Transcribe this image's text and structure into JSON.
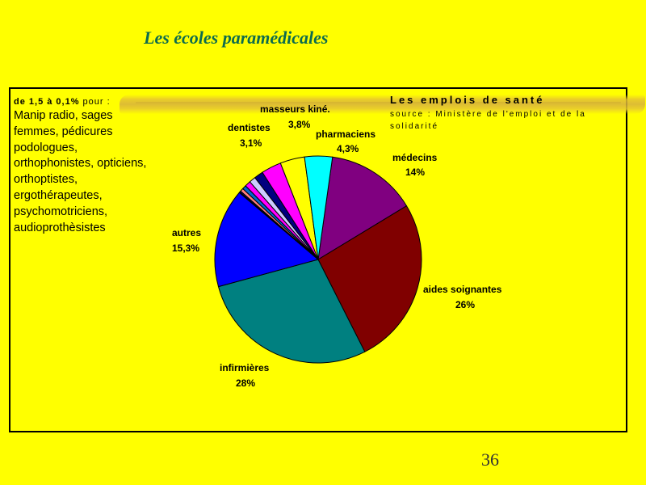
{
  "slide": {
    "title": "Les écoles paramédicales",
    "page_number": "36"
  },
  "left_note": {
    "range_label": "de 1,5 à 0,1%",
    "range_suffix": " pour :",
    "professions_text": "Manip radio, sages femmes, pédicures podologues, orthophonistes, opticiens, orthoptistes, ergothérapeutes, psychomotriciens, audioprothèsistes"
  },
  "source_box": {
    "title": "Les emplois de santé",
    "source_line": "source : Ministère de l'emploi et de la solidarité"
  },
  "chart_data": {
    "type": "pie",
    "title": "Les emplois de santé",
    "start_angle_deg": 8,
    "slices": [
      {
        "label": "médecins",
        "value_label": "14%",
        "value": 14,
        "color": "#800080"
      },
      {
        "label": "aides soignantes",
        "value_label": "26%",
        "value": 26,
        "color": "#800000"
      },
      {
        "label": "infirmières",
        "value_label": "28%",
        "value": 28,
        "color": "#008080"
      },
      {
        "label": "autres",
        "value_label": "15,3%",
        "value": 15.3,
        "color": "#0000FF"
      },
      {
        "label": "",
        "value_label": "",
        "value": 0.1,
        "color": "#FFFFFF"
      },
      {
        "label": "",
        "value_label": "",
        "value": 0.2,
        "color": "#000080"
      },
      {
        "label": "",
        "value_label": "",
        "value": 0.5,
        "color": "#FF8080"
      },
      {
        "label": "",
        "value_label": "",
        "value": 0.6,
        "color": "#0066CC"
      },
      {
        "label": "",
        "value_label": "",
        "value": 0.9,
        "color": "#FF00FF"
      },
      {
        "label": "",
        "value_label": "",
        "value": 1.0,
        "color": "#CCCCFF"
      },
      {
        "label": "",
        "value_label": "",
        "value": 1.4,
        "color": "#000080"
      },
      {
        "label": "dentistes",
        "value_label": "3,1%",
        "value": 3.1,
        "color": "#FF00FF"
      },
      {
        "label": "masseurs kiné.",
        "value_label": "3,8%",
        "value": 3.8,
        "color": "#FFFF00"
      },
      {
        "label": "pharmaciens",
        "value_label": "4,3%",
        "value": 4.3,
        "color": "#00FFFF"
      }
    ]
  }
}
